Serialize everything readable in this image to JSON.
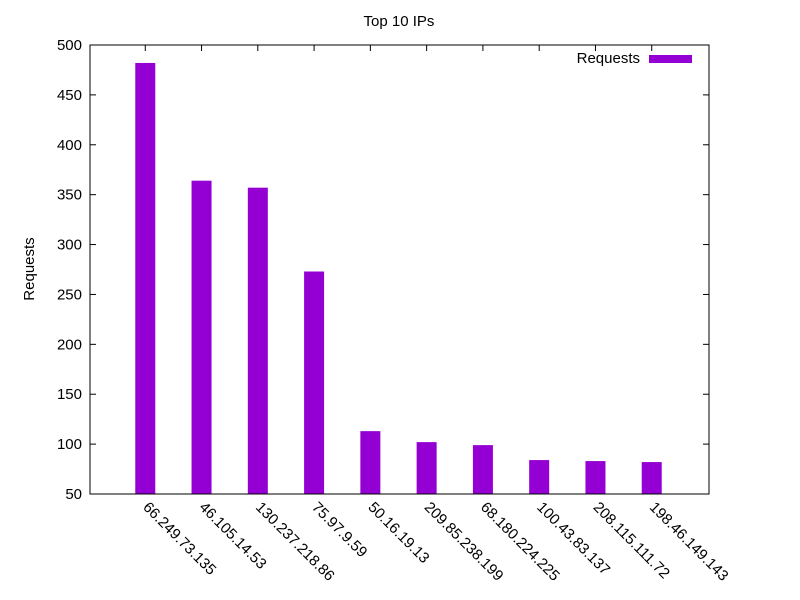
{
  "chart_data": {
    "type": "bar",
    "title": "Top 10 IPs",
    "xlabel": "",
    "ylabel": "Requests",
    "ylim": [
      50,
      500
    ],
    "yticks": [
      50,
      100,
      150,
      200,
      250,
      300,
      350,
      400,
      450,
      500
    ],
    "categories": [
      "66.249.73.135",
      "46.105.14.53",
      "130.237.218.86",
      "75.97.9.59",
      "50.16.19.13",
      "209.85.238.199",
      "68.180.224.225",
      "100.43.83.137",
      "208.115.111.72",
      "198.46.149.143"
    ],
    "series": [
      {
        "name": "Requests",
        "values": [
          482,
          364,
          357,
          273,
          113,
          102,
          99,
          84,
          83,
          82
        ]
      }
    ],
    "legend": "top-right",
    "grid": false,
    "colors": {
      "bar": "#9400d3",
      "axis": "#000000"
    }
  }
}
